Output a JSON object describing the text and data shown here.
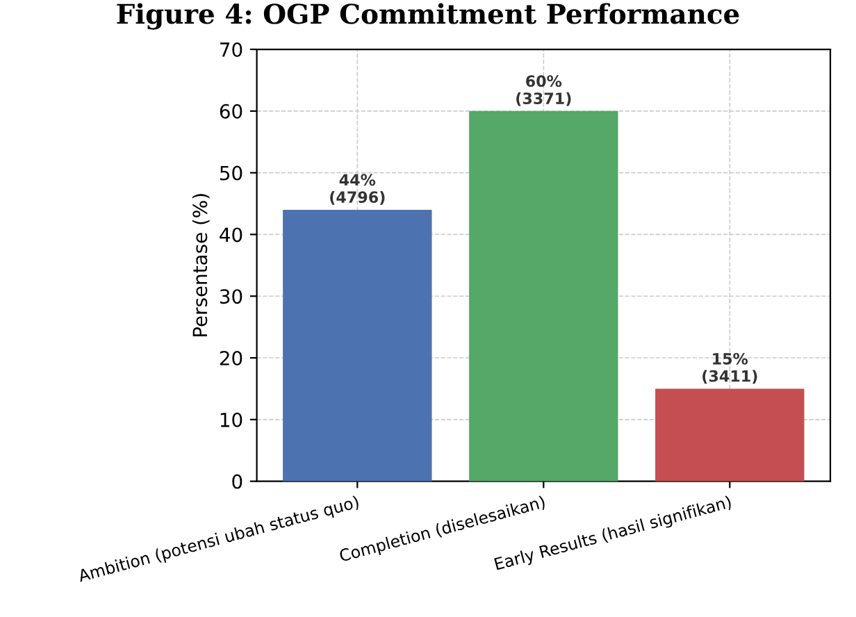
{
  "chart_data": {
    "type": "bar",
    "title": "Figure 4: OGP Commitment Performance",
    "ylabel": "Persentase (%)",
    "categories": [
      "Ambition (potensi ubah status quo)",
      "Completion (diselesaikan)",
      "Early Results (hasil signifikan)"
    ],
    "values": [
      44,
      60,
      15
    ],
    "colors": [
      "#4c72b0",
      "#55a868",
      "#c44e52"
    ],
    "value_labels": [
      "44%\n(4796)",
      "60%\n(3371)",
      "15%\n(3411)"
    ],
    "ylim": [
      0,
      70
    ],
    "yticks": [
      0,
      10,
      20,
      30,
      40,
      50,
      60,
      70
    ],
    "grid": true
  }
}
